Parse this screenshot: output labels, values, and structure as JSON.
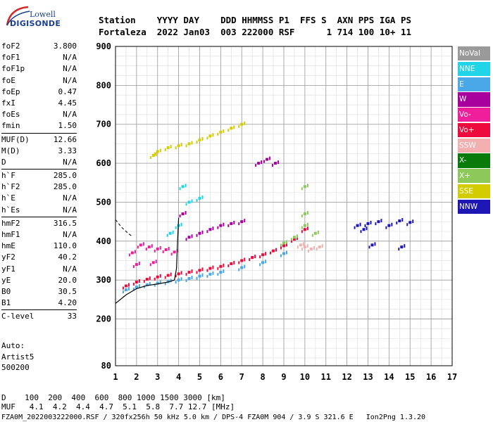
{
  "logo": {
    "top": "Lowell",
    "bottom": "DIGISONDE"
  },
  "header": {
    "line1": "Station    YYYY DAY    DDD HHMMSS P1  FFS S  AXN PPS IGA PS",
    "line2": "Fortaleza  2022 Jan03  003 222000 RSF      1 714 100 10+ 11"
  },
  "params": [
    {
      "name": "foF2",
      "value": "3.800"
    },
    {
      "name": "foF1",
      "value": "N/A"
    },
    {
      "name": "foF1p",
      "value": "N/A"
    },
    {
      "name": "foE",
      "value": "N/A"
    },
    {
      "name": "foEp",
      "value": "0.47"
    },
    {
      "name": "fxI",
      "value": "4.45"
    },
    {
      "name": "foEs",
      "value": "N/A"
    },
    {
      "name": "fmin",
      "value": "1.50"
    },
    {
      "name": "MUF(D)",
      "value": "12.66"
    },
    {
      "name": "M(D)",
      "value": "3.33"
    },
    {
      "name": "D",
      "value": "N/A"
    },
    {
      "name": "h`F",
      "value": "285.0"
    },
    {
      "name": "h`F2",
      "value": "285.0"
    },
    {
      "name": "h`E",
      "value": "N/A"
    },
    {
      "name": "h`Es",
      "value": "N/A"
    },
    {
      "name": "hmF2",
      "value": "316.5"
    },
    {
      "name": "hmF1",
      "value": "N/A"
    },
    {
      "name": "hmE",
      "value": "110.0"
    },
    {
      "name": "yF2",
      "value": "40.2"
    },
    {
      "name": "yF1",
      "value": "N/A"
    },
    {
      "name": "yE",
      "value": "20.0"
    },
    {
      "name": "B0",
      "value": "30.5"
    },
    {
      "name": "B1",
      "value": "4.20"
    },
    {
      "name": "C-level",
      "value": "33"
    }
  ],
  "separators_after": [
    7,
    10,
    14,
    22
  ],
  "auto": {
    "line1": "Auto:",
    "line2": "Artist5",
    "line3": "500200"
  },
  "freq_table": {
    "line1": "D    100  200  400  600  800 1000 1500 3000 [km]",
    "line2": "MUF   4.1  4.2  4.4  4.7  5.1  5.8  7.7 12.7 [MHz]"
  },
  "footer": "FZA0M_2022003222000.RSF / 320fx256h 50 kHz 5.0 km / DPS-4 FZA0M 904 / 3.9 S 321.6 E   Ion2Png 1.3.20",
  "legend": [
    {
      "label": "NoVal",
      "color": "#9a9a9a"
    },
    {
      "label": "NNE",
      "color": "#22d4e8"
    },
    {
      "label": "E",
      "color": "#4aa8e8"
    },
    {
      "label": "W",
      "color": "#a8009c"
    },
    {
      "label": "Vo-",
      "color": "#ef1e9a"
    },
    {
      "label": "Vo+",
      "color": "#ee0a3c"
    },
    {
      "label": "SSW",
      "color": "#f4b0b0"
    },
    {
      "label": "X-",
      "color": "#0a7a0a"
    },
    {
      "label": "X+",
      "color": "#8cc85a"
    },
    {
      "label": "SSE",
      "color": "#d2cc00"
    },
    {
      "label": "NNW",
      "color": "#1e16b4"
    }
  ],
  "chart_data": {
    "type": "scatter",
    "title": "",
    "xlabel": "",
    "ylabel": "",
    "xlim": [
      1,
      17
    ],
    "ylim": [
      80,
      900
    ],
    "x_ticks": [
      1,
      2,
      3,
      4,
      5,
      6,
      7,
      8,
      9,
      10,
      11,
      12,
      13,
      14,
      15,
      16,
      17
    ],
    "y_ticks": [
      80,
      200,
      300,
      400,
      500,
      600,
      700,
      800,
      900
    ],
    "minor_x_step": 0.5,
    "minor_y_step": 25,
    "grid": true,
    "legend_position": "right",
    "series": [
      {
        "name": "O-trace Vo+ (main)",
        "color": "#ee0a3c",
        "points": [
          [
            1.5,
            285
          ],
          [
            2.0,
            295
          ],
          [
            2.5,
            302
          ],
          [
            3.0,
            308
          ],
          [
            3.5,
            312
          ],
          [
            4.0,
            316
          ],
          [
            4.5,
            320
          ],
          [
            5.0,
            325
          ],
          [
            5.5,
            330
          ],
          [
            6.0,
            335
          ],
          [
            6.5,
            342
          ],
          [
            7.0,
            350
          ],
          [
            7.5,
            358
          ],
          [
            8.0,
            365
          ],
          [
            8.5,
            375
          ],
          [
            9.0,
            388
          ],
          [
            9.5,
            405
          ],
          [
            10.0,
            430
          ]
        ]
      },
      {
        "name": "O-trace E (lower edge)",
        "color": "#4aa8e8",
        "points": [
          [
            1.5,
            275
          ],
          [
            2.0,
            282
          ],
          [
            2.5,
            288
          ],
          [
            3.0,
            292
          ],
          [
            3.5,
            296
          ],
          [
            4.0,
            300
          ],
          [
            4.5,
            304
          ],
          [
            5.0,
            310
          ],
          [
            5.5,
            315
          ],
          [
            6.0,
            320
          ],
          [
            7.0,
            332
          ],
          [
            8.0,
            345
          ],
          [
            9.0,
            368
          ]
        ]
      },
      {
        "name": "Vo- spread",
        "color": "#ef1e9a",
        "points": [
          [
            1.8,
            370
          ],
          [
            2.2,
            390
          ],
          [
            2.6,
            385
          ],
          [
            3.0,
            380
          ],
          [
            3.4,
            378
          ],
          [
            3.8,
            372
          ],
          [
            2.0,
            340
          ],
          [
            2.8,
            345
          ]
        ]
      },
      {
        "name": "W spread",
        "color": "#a8009c",
        "points": [
          [
            4.5,
            410
          ],
          [
            5.0,
            420
          ],
          [
            5.5,
            430
          ],
          [
            6.0,
            440
          ],
          [
            6.5,
            445
          ],
          [
            7.0,
            450
          ],
          [
            4.2,
            470
          ],
          [
            7.8,
            600
          ],
          [
            8.2,
            610
          ],
          [
            8.6,
            600
          ]
        ]
      },
      {
        "name": "NNE (upper)",
        "color": "#22d4e8",
        "points": [
          [
            3.6,
            420
          ],
          [
            4.0,
            440
          ],
          [
            4.5,
            500
          ],
          [
            5.0,
            510
          ],
          [
            4.2,
            540
          ]
        ]
      },
      {
        "name": "SSE (second hop)",
        "color": "#d2cc00",
        "points": [
          [
            2.8,
            620
          ],
          [
            3.0,
            630
          ],
          [
            3.5,
            640
          ],
          [
            4.0,
            645
          ],
          [
            4.5,
            650
          ],
          [
            5.0,
            660
          ],
          [
            5.5,
            670
          ],
          [
            6.0,
            680
          ],
          [
            6.5,
            690
          ],
          [
            7.0,
            700
          ]
        ]
      },
      {
        "name": "NNW (spread F)",
        "color": "#1e16b4",
        "points": [
          [
            12.5,
            440
          ],
          [
            12.8,
            430
          ],
          [
            13.0,
            445
          ],
          [
            13.5,
            450
          ],
          [
            14.0,
            440
          ],
          [
            14.5,
            452
          ],
          [
            15.0,
            448
          ],
          [
            13.2,
            390
          ],
          [
            14.6,
            385
          ]
        ]
      },
      {
        "name": "SSW",
        "color": "#f4b0b0",
        "points": [
          [
            10.0,
            385
          ],
          [
            10.3,
            380
          ],
          [
            10.7,
            385
          ],
          [
            9.8,
            390
          ]
        ]
      },
      {
        "name": "X+",
        "color": "#8cc85a",
        "points": [
          [
            9.0,
            395
          ],
          [
            9.5,
            410
          ],
          [
            10.0,
            440
          ],
          [
            10.0,
            470
          ],
          [
            10.0,
            540
          ],
          [
            10.5,
            420
          ]
        ]
      }
    ],
    "profile_curve": {
      "name": "electron density profile",
      "color": "#000000",
      "points": [
        [
          1.0,
          240
        ],
        [
          1.5,
          262
        ],
        [
          2.0,
          278
        ],
        [
          2.5,
          286
        ],
        [
          3.0,
          290
        ],
        [
          3.5,
          295
        ],
        [
          3.8,
          300
        ],
        [
          3.9,
          330
        ],
        [
          3.95,
          400
        ],
        [
          4.0,
          460
        ]
      ]
    },
    "profile_dashed": {
      "name": "extrapolated profile",
      "color": "#000000",
      "points": [
        [
          1.0,
          455
        ],
        [
          1.3,
          435
        ],
        [
          1.6,
          420
        ],
        [
          1.8,
          412
        ]
      ]
    }
  }
}
